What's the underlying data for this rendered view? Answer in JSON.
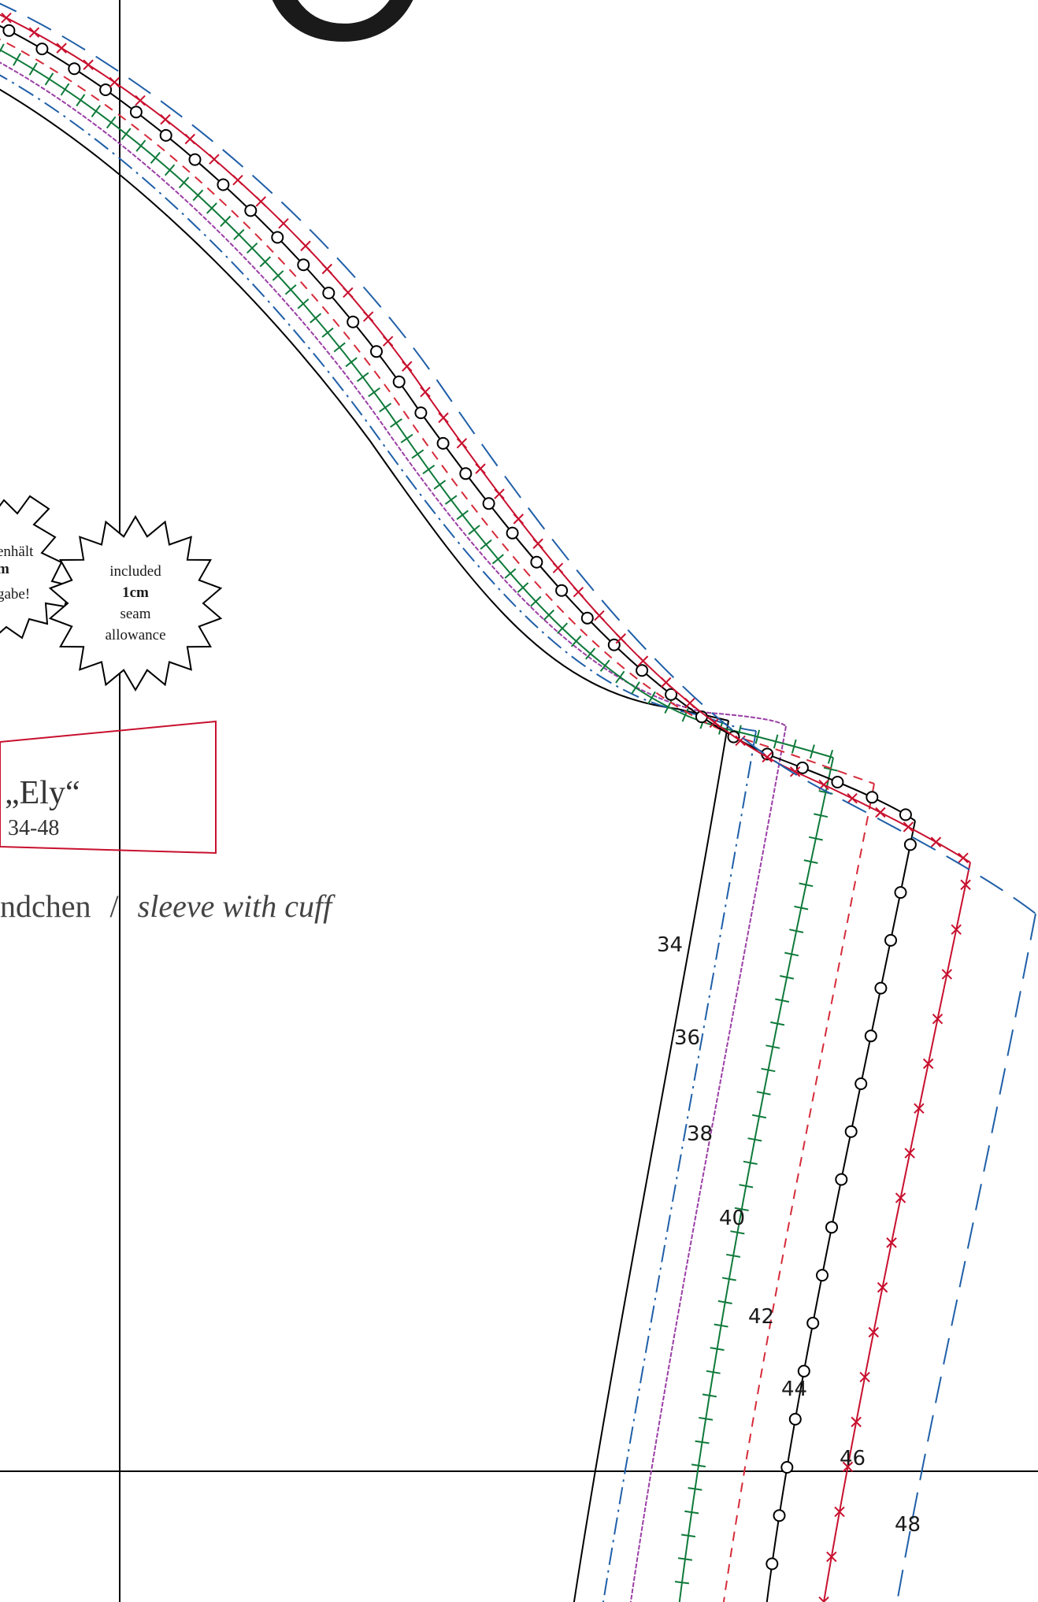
{
  "pattern": {
    "section_letter": "C",
    "pattern_name": "„Ely“",
    "size_range": "34-48",
    "piece_name_de": "ndchen",
    "piece_separator": "/",
    "piece_name_en": "sleeve with cuff"
  },
  "badge_de": {
    "line1": "enhält",
    "line2": "m",
    "line3": "gabe!"
  },
  "badge_en": {
    "line1": "included",
    "line2": "1cm",
    "line3": "seam",
    "line4": "allowance"
  },
  "sizes": [
    {
      "label": "34",
      "color": "#000000",
      "style": "solid"
    },
    {
      "label": "36",
      "color": "#1f5fa8",
      "style": "dash-dot"
    },
    {
      "label": "38",
      "color": "#9b3fa6",
      "style": "wavy"
    },
    {
      "label": "40",
      "color": "#0f7a3a",
      "style": "tick"
    },
    {
      "label": "42",
      "color": "#d62b3a",
      "style": "short-dash"
    },
    {
      "label": "44",
      "color": "#000000",
      "style": "circle"
    },
    {
      "label": "46",
      "color": "#c8102e",
      "style": "cross"
    },
    {
      "label": "48",
      "color": "#1f5fa8",
      "style": "long-dash"
    }
  ],
  "colors": {
    "box_border": "#c8102e",
    "guide_line": "#000000"
  }
}
